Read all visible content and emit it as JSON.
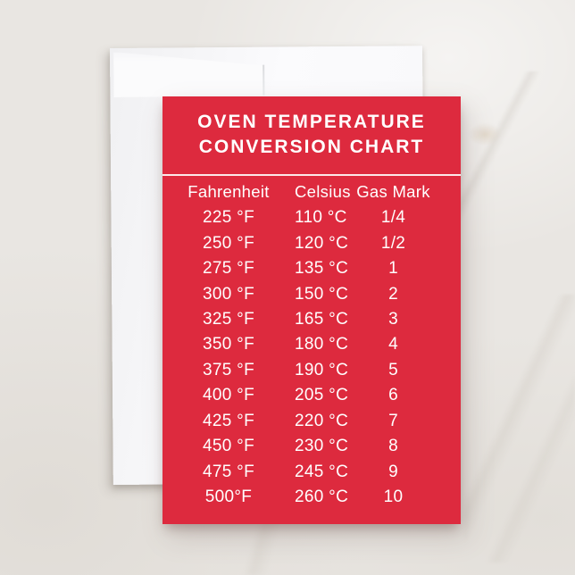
{
  "scene": {
    "surface": "light marble tabletop",
    "background_color": "#e9e6e2",
    "envelope_color": "#fafafc",
    "card_color": "#dd2a3e",
    "card_text_color": "#ffffff"
  },
  "card": {
    "title_line1": "OVEN TEMPERATURE",
    "title_line2": "CONVERSION CHART",
    "table": {
      "headers": [
        "Fahrenheit",
        "Celsius",
        "Gas Mark"
      ],
      "rows": [
        [
          "225 °F",
          "110 °C",
          "1/4"
        ],
        [
          "250 °F",
          "120 °C",
          "1/2"
        ],
        [
          "275 °F",
          "135 °C",
          "1"
        ],
        [
          "300 °F",
          "150 °C",
          "2"
        ],
        [
          "325 °F",
          "165 °C",
          "3"
        ],
        [
          "350 °F",
          "180 °C",
          "4"
        ],
        [
          "375 °F",
          "190 °C",
          "5"
        ],
        [
          "400 °F",
          "205 °C",
          "6"
        ],
        [
          "425 °F",
          "220 °C",
          "7"
        ],
        [
          "450 °F",
          "230 °C",
          "8"
        ],
        [
          "475 °F",
          "245 °C",
          "9"
        ],
        [
          "500°F",
          "260 °C",
          "10"
        ]
      ]
    }
  },
  "chart_data": {
    "type": "table",
    "title": "OVEN TEMPERATURE CONVERSION CHART",
    "columns": [
      "Fahrenheit",
      "Celsius",
      "Gas Mark"
    ],
    "fahrenheit_values": [
      225,
      250,
      275,
      300,
      325,
      350,
      375,
      400,
      425,
      450,
      475,
      500
    ],
    "celsius_values": [
      110,
      120,
      135,
      150,
      165,
      180,
      190,
      205,
      220,
      230,
      245,
      260
    ],
    "gas_marks": [
      "1/4",
      "1/2",
      "1",
      "2",
      "3",
      "4",
      "5",
      "6",
      "7",
      "8",
      "9",
      "10"
    ]
  }
}
